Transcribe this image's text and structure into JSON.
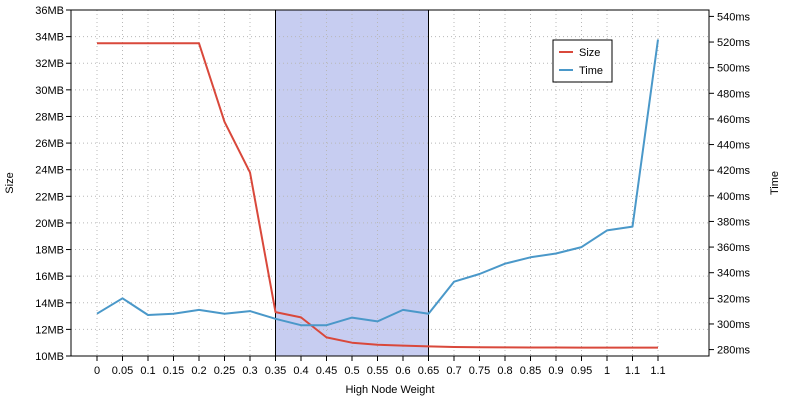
{
  "chart_data": {
    "type": "line",
    "title": "",
    "xlabel": "High Node Weight",
    "ylabel_left": "Size",
    "ylabel_right": "Time",
    "x_tick_labels": [
      "0",
      "0.05",
      "0.1",
      "0.15",
      "0.2",
      "0.25",
      "0.3",
      "0.35",
      "0.4",
      "0.45",
      "0.5",
      "0.55",
      "0.6",
      "0.65",
      "0.7",
      "0.75",
      "0.8",
      "0.85",
      "0.9",
      "0.95",
      "1",
      "1.1",
      "1.1"
    ],
    "y_left": {
      "min": 10,
      "max": 36,
      "step": 2,
      "unit": "MB",
      "tick_labels": [
        "10MB",
        "12MB",
        "14MB",
        "16MB",
        "18MB",
        "20MB",
        "22MB",
        "24MB",
        "26MB",
        "28MB",
        "30MB",
        "32MB",
        "34MB",
        "36MB"
      ]
    },
    "y_right": {
      "min": 275,
      "max": 545,
      "step": 20,
      "first": 280,
      "unit": "ms",
      "tick_labels": [
        "280ms",
        "300ms",
        "320ms",
        "340ms",
        "360ms",
        "380ms",
        "400ms",
        "420ms",
        "440ms",
        "460ms",
        "480ms",
        "500ms",
        "520ms",
        "540ms"
      ]
    },
    "highlight": {
      "from_index": 7,
      "to_index": 13,
      "color": "#c7cdf1"
    },
    "grid": true,
    "legend_position": "top-right",
    "series": [
      {
        "name": "Size",
        "axis": "left",
        "color": "#d9483b",
        "unit": "MB",
        "values": [
          33.5,
          33.5,
          33.5,
          33.5,
          33.5,
          27.6,
          23.8,
          13.3,
          12.9,
          11.4,
          11.0,
          10.85,
          10.78,
          10.72,
          10.68,
          10.66,
          10.65,
          10.64,
          10.64,
          10.63,
          10.63,
          10.63,
          10.63
        ]
      },
      {
        "name": "Time",
        "axis": "right",
        "color": "#4a98c9",
        "unit": "ms",
        "values": [
          308,
          320,
          307,
          308,
          311,
          308,
          310,
          304,
          299,
          299,
          305,
          302,
          311,
          308,
          333,
          339,
          347,
          352,
          355,
          360,
          373,
          376,
          522
        ]
      }
    ]
  }
}
